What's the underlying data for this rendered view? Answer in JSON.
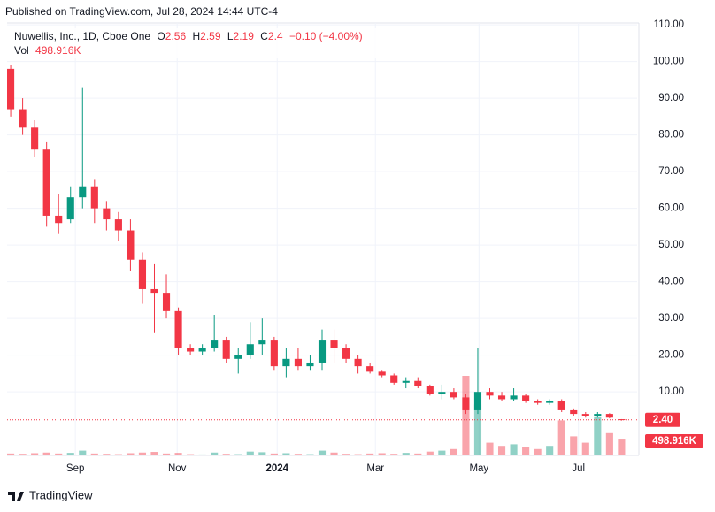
{
  "header": {
    "published": "Published on TradingView.com, Jul 28, 2024 14:44 UTC-4",
    "footer": "TradingView"
  },
  "legend": {
    "symbol": "Nuwellis, Inc., 1D, Cboe One",
    "open_label": "O",
    "open": 2.56,
    "high_label": "H",
    "high": 2.59,
    "low_label": "L",
    "low": 2.19,
    "close_label": "C",
    "close": 2.4,
    "change": "−0.10 (−4.00%)",
    "vol_label": "Vol",
    "vol": "498.916K"
  },
  "chart_data": {
    "type": "candlestick",
    "up_color": "#089981",
    "down_color": "#f23645",
    "grid": true,
    "open": [
      98,
      87,
      82,
      76,
      58,
      57,
      63,
      66,
      60,
      57,
      54,
      46,
      38,
      37,
      32,
      22,
      21,
      22,
      24,
      19,
      20,
      23,
      24,
      17,
      19,
      17,
      18,
      24,
      22,
      19,
      17,
      15.5,
      14.5,
      12.5,
      13,
      11.5,
      9.5,
      10,
      8.5,
      5,
      10,
      9,
      8,
      9,
      7.5,
      7,
      7.5,
      5,
      4,
      3.5,
      4,
      2.56
    ],
    "high": [
      99,
      90,
      84,
      78,
      64,
      66,
      93,
      68,
      62,
      59,
      57,
      48,
      45,
      42,
      33,
      23,
      23,
      31,
      25,
      22,
      29,
      30,
      25,
      22,
      22,
      20,
      27,
      27,
      23,
      20,
      18,
      16,
      15,
      14,
      14,
      12,
      12,
      11,
      9.5,
      22,
      11,
      10,
      11,
      9.5,
      8,
      8,
      8,
      5.5,
      4.5,
      4.5,
      4.2,
      2.59
    ],
    "low": [
      85,
      80,
      74,
      55,
      53,
      56,
      60,
      56,
      54,
      51,
      43,
      34,
      26,
      30,
      20,
      20,
      20,
      21,
      18,
      15,
      19,
      20,
      16,
      14,
      16,
      16,
      16,
      18,
      18,
      15,
      15,
      14,
      12,
      11,
      11,
      9,
      8,
      8,
      4,
      4,
      8,
      7.5,
      7.5,
      7,
      6.5,
      6.5,
      4.5,
      3.5,
      3,
      3,
      2.8,
      2.19
    ],
    "close": [
      87,
      82,
      76,
      58,
      56,
      63,
      66,
      60,
      57,
      54,
      46,
      38,
      37,
      32,
      22,
      21,
      22,
      24,
      19,
      20,
      23,
      24,
      17,
      19,
      17,
      18,
      24,
      22,
      19,
      17,
      15.5,
      14.5,
      12.5,
      13,
      11.5,
      9.5,
      10,
      8.5,
      5,
      10,
      9,
      8,
      9,
      7.5,
      7,
      7.5,
      5,
      4,
      3.5,
      4,
      3,
      2.4
    ],
    "volume": [
      60000,
      50000,
      70000,
      90000,
      60000,
      80000,
      150000,
      60000,
      50000,
      40000,
      70000,
      90000,
      110000,
      60000,
      80000,
      40000,
      30000,
      90000,
      50000,
      40000,
      120000,
      100000,
      60000,
      70000,
      50000,
      40000,
      150000,
      90000,
      50000,
      40000,
      60000,
      70000,
      50000,
      80000,
      60000,
      120000,
      150000,
      200000,
      2500000,
      1600000,
      400000,
      300000,
      350000,
      250000,
      200000,
      300000,
      1100000,
      600000,
      400000,
      1200000,
      700000,
      498916
    ],
    "volume_label": "498.916K",
    "close_label": "2.40",
    "xlim": [
      -0.3,
      52.3
    ],
    "xticks": [
      {
        "value": 5.4,
        "label": "Sep"
      },
      {
        "value": 13.9,
        "label": "Nov"
      },
      {
        "value": 22.25,
        "label": "2024"
      },
      {
        "value": 30.45,
        "label": "Mar"
      },
      {
        "value": 39.1,
        "label": "May"
      },
      {
        "value": 47.4,
        "label": "Jul"
      }
    ],
    "ylim": [
      -7.3,
      110.5
    ],
    "yticks": [
      {
        "value": 10,
        "label": "10.00"
      },
      {
        "value": 20,
        "label": "20.00"
      },
      {
        "value": 30,
        "label": "30.00"
      },
      {
        "value": 40,
        "label": "40.00"
      },
      {
        "value": 50,
        "label": "50.00"
      },
      {
        "value": 60,
        "label": "60.00"
      },
      {
        "value": 70,
        "label": "70.00"
      },
      {
        "value": 80,
        "label": "80.00"
      },
      {
        "value": 90,
        "label": "90.00"
      },
      {
        "value": 100,
        "label": "100.00"
      },
      {
        "value": 110,
        "label": "110.00"
      }
    ]
  }
}
